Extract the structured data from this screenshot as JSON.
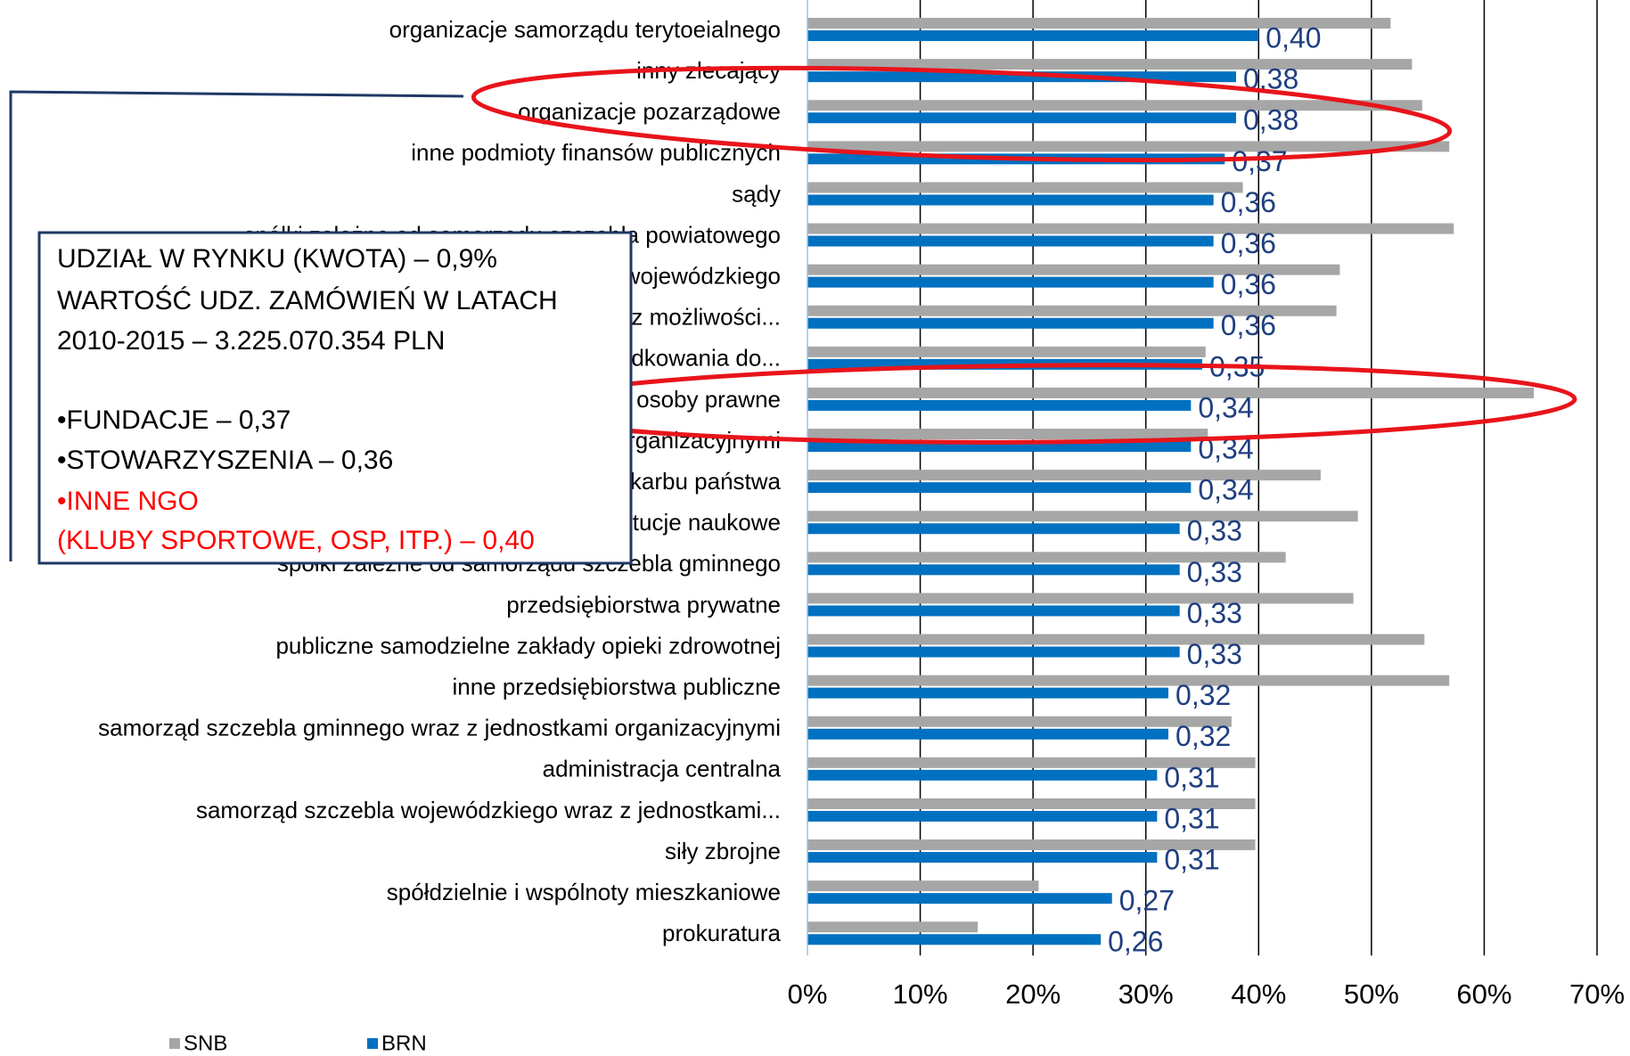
{
  "chart_data": {
    "type": "barh",
    "categories": [
      "organizacje samorządu terytoeialnego",
      "inny zlecający",
      "organizacje pozarządowe",
      "inne podmioty finansów publicznych",
      "sądy",
      "spółki zależne od samorządu szczebla powiatowego",
      "spółki zależne od samorządu szczebla wojewódzkiego",
      "zamawiający bez możliwości...",
      "podmioty uprawnione do uporządkowania do...",
      "inne osoby prawne",
      "samorząd szczebla powiatowego wraz z jednostkami organizacyjnymi",
      "spółki skarbu państwa",
      "instytucje naukowe",
      "spółki zależne od samorządu szczebla gminnego",
      "przedsiębiorstwa prywatne",
      "publiczne samodzielne zakłady opieki zdrowotnej",
      "inne przedsiębiorstwa publiczne",
      "samorząd szczebla gminnego wraz z jednostkami organizacyjnymi",
      "administracja centralna",
      "samorząd szczebla wojewódzkiego wraz z jednostkami...",
      "siły zbrojne",
      "spółdzielnie i wspólnoty mieszkaniowe",
      "prokuratura"
    ],
    "series": [
      {
        "name": "SNB",
        "color": "#a6a6a6",
        "values": [
          51.7,
          53.6,
          54.5,
          56.9,
          38.6,
          57.3,
          47.2,
          46.9,
          35.3,
          64.4,
          35.5,
          45.5,
          48.8,
          42.4,
          48.4,
          54.7,
          56.9,
          37.6,
          39.7,
          39.7,
          39.7,
          20.5,
          15.1
        ]
      },
      {
        "name": "BRN",
        "color": "#0070c0",
        "values": [
          40,
          38,
          38,
          37,
          36,
          36,
          36,
          36,
          35,
          34,
          34,
          34,
          33,
          33,
          33,
          33,
          32,
          32,
          31,
          31,
          31,
          27,
          26
        ],
        "value_labels": [
          "0,40",
          "0,38",
          "0,38",
          "0,37",
          "0,36",
          "0,36",
          "0,36",
          "0,36",
          "0,35",
          "0,34",
          "0,34",
          "0,34",
          "0,33",
          "0,33",
          "0,33",
          "0,33",
          "0,32",
          "0,32",
          "0,31",
          "0,31",
          "0,31",
          "0,27",
          "0,26"
        ]
      }
    ],
    "xlim": [
      0,
      70
    ],
    "xticks": [
      {
        "value": 0,
        "label": "0%"
      },
      {
        "value": 10,
        "label": "10%"
      },
      {
        "value": 20,
        "label": "20%"
      },
      {
        "value": 30,
        "label": "30%"
      },
      {
        "value": 40,
        "label": "40%"
      },
      {
        "value": 50,
        "label": "50%"
      },
      {
        "value": 60,
        "label": "60%"
      },
      {
        "value": 70,
        "label": "70%"
      }
    ],
    "grid": true,
    "legend": "bottom-left",
    "callout": [
      {
        "text": "UDZIAŁ W RYNKU (KWOTA) – 0,9%",
        "color": "#000000"
      },
      {
        "text": "WARTOŚĆ UDZ. ZAMÓWIEŃ W LATACH",
        "color": "#000000"
      },
      {
        "text": "2010-2015 – 3.225.070.354 PLN",
        "color": "#000000"
      },
      {
        "text": "•FUNDACJE – 0,37",
        "color": "#000000"
      },
      {
        "text": "•STOWARZYSZENIA – 0,36",
        "color": "#000000"
      },
      {
        "text": "•INNE NGO",
        "color": "#ff0000"
      },
      {
        "text": "(KLUBY SPORTOWE, OSP, ITP.) – 0,40",
        "color": "#ff0000"
      }
    ]
  }
}
